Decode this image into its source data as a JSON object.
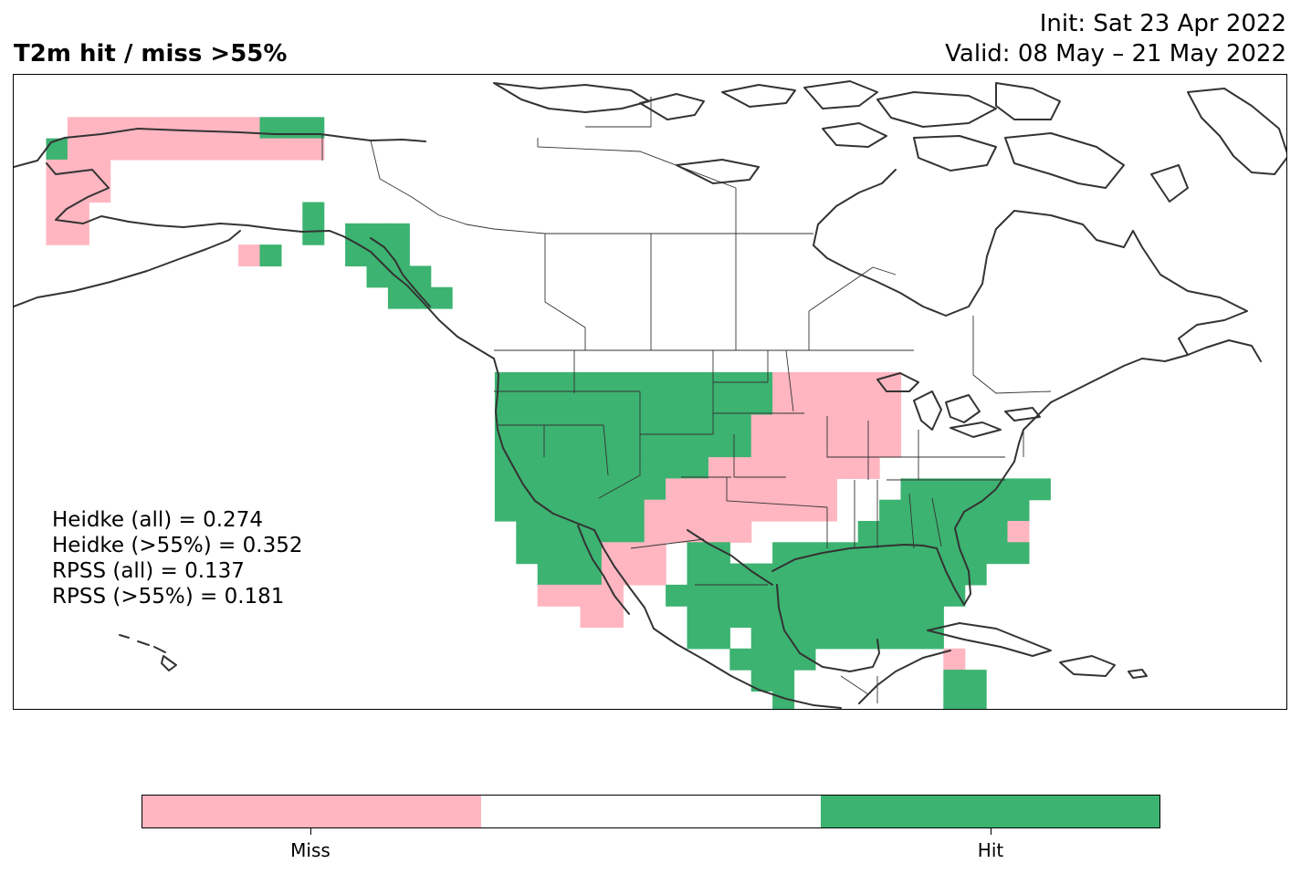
{
  "header": {
    "title": "T2m hit / miss  >55%",
    "init": "Init: Sat 23 Apr 2022",
    "valid": "Valid: 08 May – 21 May 2022"
  },
  "stats": [
    "Heidke (all) = 0.274",
    "Heidke (>55%) = 0.352",
    "RPSS (all) = 0.137",
    "RPSS (>55%) = 0.181"
  ],
  "colors": {
    "miss": "#ffb6c1",
    "hit": "#3cb371",
    "neutral": "#ffffff",
    "coast": "#333333"
  },
  "colorbar": {
    "categories": [
      "Miss",
      "",
      "Hit"
    ],
    "labels": [
      "Miss",
      "Hit"
    ]
  }
}
